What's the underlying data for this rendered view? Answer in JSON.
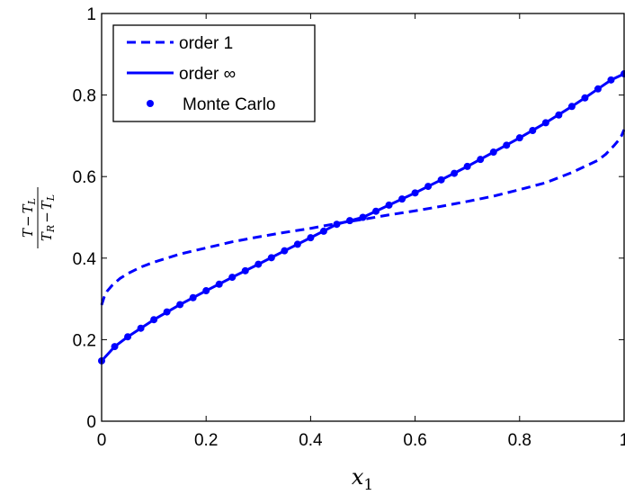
{
  "chart_data": {
    "type": "line",
    "title": "",
    "xlabel": "x_1",
    "ylabel": "(T - T_L) / (T_R - T_L)",
    "xlabel_parts": {
      "base": "x",
      "sub": "1"
    },
    "ylabel_parts": {
      "num": {
        "a": "T",
        "minus": "−",
        "b": "T",
        "b_sub": "L"
      },
      "den": {
        "a": "T",
        "a_sub": "R",
        "minus": "−",
        "b": "T",
        "b_sub": "L"
      }
    },
    "xlim": [
      0,
      1
    ],
    "ylim": [
      0,
      1
    ],
    "xticks": [
      0,
      0.2,
      0.4,
      0.6,
      0.8,
      1
    ],
    "xtick_labels": [
      "0",
      "0.2",
      "0.4",
      "0.6",
      "0.8",
      "1"
    ],
    "yticks": [
      0,
      0.2,
      0.4,
      0.6,
      0.8,
      1
    ],
    "ytick_labels": [
      "0",
      "0.2",
      "0.4",
      "0.6",
      "0.8",
      "1"
    ],
    "grid": false,
    "legend_position": "top-left",
    "series": [
      {
        "name": "order 1",
        "style": "dashed",
        "color": "#0000ff",
        "x": [
          0,
          0.005,
          0.01,
          0.02,
          0.035,
          0.05,
          0.075,
          0.1,
          0.15,
          0.2,
          0.25,
          0.3,
          0.35,
          0.4,
          0.45,
          0.5,
          0.55,
          0.6,
          0.65,
          0.7,
          0.75,
          0.8,
          0.85,
          0.9,
          0.925,
          0.95,
          0.965,
          0.98,
          0.99,
          0.995,
          1
        ],
        "y": [
          0.285,
          0.305,
          0.318,
          0.333,
          0.35,
          0.362,
          0.378,
          0.39,
          0.41,
          0.425,
          0.44,
          0.452,
          0.463,
          0.473,
          0.485,
          0.495,
          0.506,
          0.516,
          0.527,
          0.539,
          0.552,
          0.568,
          0.585,
          0.61,
          0.625,
          0.64,
          0.655,
          0.675,
          0.69,
          0.7,
          0.715
        ]
      },
      {
        "name": "order ∞",
        "style": "solid",
        "color": "#0000ff",
        "x": [
          0,
          0.025,
          0.05,
          0.075,
          0.1,
          0.15,
          0.2,
          0.25,
          0.3,
          0.35,
          0.4,
          0.45,
          0.5,
          0.55,
          0.6,
          0.65,
          0.7,
          0.75,
          0.8,
          0.85,
          0.9,
          0.925,
          0.95,
          0.975,
          1
        ],
        "y": [
          0.148,
          0.183,
          0.207,
          0.228,
          0.249,
          0.286,
          0.32,
          0.353,
          0.385,
          0.418,
          0.45,
          0.483,
          0.5,
          0.53,
          0.56,
          0.592,
          0.625,
          0.66,
          0.695,
          0.732,
          0.772,
          0.793,
          0.815,
          0.837,
          0.852
        ]
      },
      {
        "name": "Monte Carlo",
        "style": "markers",
        "color": "#0000ff",
        "x": [
          0,
          0.025,
          0.05,
          0.075,
          0.1,
          0.125,
          0.15,
          0.175,
          0.2,
          0.225,
          0.25,
          0.275,
          0.3,
          0.325,
          0.35,
          0.375,
          0.4,
          0.425,
          0.45,
          0.475,
          0.5,
          0.525,
          0.55,
          0.575,
          0.6,
          0.625,
          0.65,
          0.675,
          0.7,
          0.725,
          0.75,
          0.775,
          0.8,
          0.825,
          0.85,
          0.875,
          0.9,
          0.925,
          0.95,
          0.975,
          1
        ],
        "y": [
          0.148,
          0.183,
          0.207,
          0.228,
          0.249,
          0.268,
          0.286,
          0.303,
          0.32,
          0.336,
          0.353,
          0.369,
          0.385,
          0.401,
          0.418,
          0.434,
          0.45,
          0.466,
          0.483,
          0.492,
          0.5,
          0.515,
          0.53,
          0.545,
          0.56,
          0.576,
          0.592,
          0.608,
          0.625,
          0.642,
          0.66,
          0.677,
          0.695,
          0.713,
          0.732,
          0.751,
          0.772,
          0.793,
          0.815,
          0.837,
          0.852
        ]
      }
    ]
  }
}
